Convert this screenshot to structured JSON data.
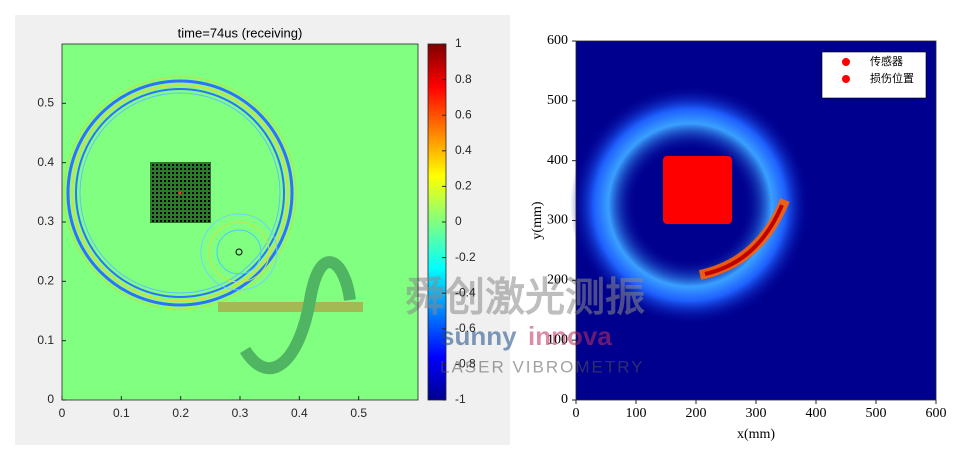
{
  "chart_data": [
    {
      "type": "heatmap",
      "title": "time=74us (receiving)",
      "xlim": [
        0,
        0.6
      ],
      "xticks": [
        0,
        0.1,
        0.2,
        0.3,
        0.4,
        0.5
      ],
      "ylim": [
        0,
        0.6
      ],
      "yticks": [
        0,
        0.1,
        0.2,
        0.3,
        0.4,
        0.5
      ],
      "clim": [
        -1,
        1
      ],
      "cticks": [
        -1,
        -0.8,
        -0.6,
        -0.4,
        -0.2,
        0,
        0.2,
        0.4,
        0.6,
        0.8,
        1
      ],
      "colormap": "jet"
    },
    {
      "type": "heatmap",
      "xlabel": "x(mm)",
      "ylabel": "y(mm)",
      "xlim": [
        0,
        600
      ],
      "xticks": [
        0,
        100,
        200,
        300,
        400,
        500,
        600
      ],
      "ylim": [
        0,
        600
      ],
      "yticks": [
        0,
        100,
        200,
        300,
        400,
        500,
        600
      ],
      "legend": [
        {
          "name": "传感器",
          "color": "#ff0000"
        },
        {
          "name": "损伤位置",
          "color": "#ff0000"
        }
      ],
      "legend_position": "upper right"
    }
  ],
  "watermark": {
    "title": "舜创激光测振",
    "brand_1": "sunny",
    "brand_2": "innova",
    "tagline": "LASER VIBROMETRY"
  }
}
